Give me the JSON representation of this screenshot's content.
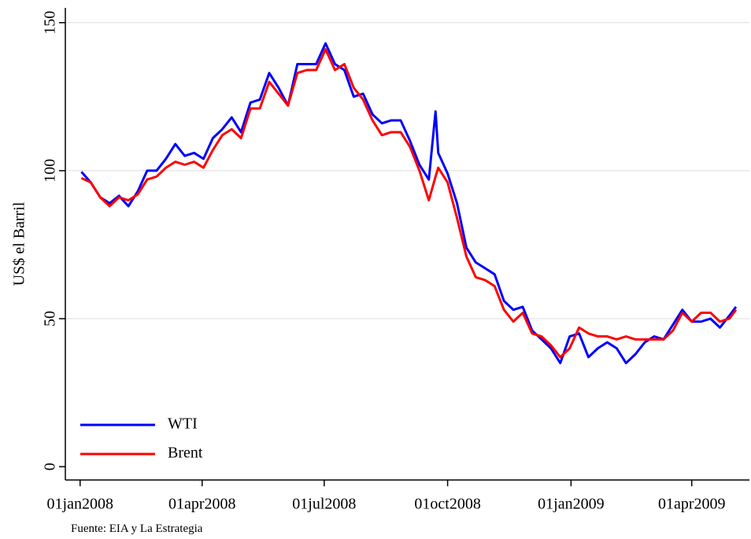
{
  "chart_data": {
    "type": "line",
    "y_label": "US$ el Barril",
    "note": "Fuente: EIA y La Estrategia",
    "x": [
      "2008-01-02",
      "2008-01-09",
      "2008-01-16",
      "2008-01-23",
      "2008-01-30",
      "2008-02-06",
      "2008-02-13",
      "2008-02-20",
      "2008-02-27",
      "2008-03-05",
      "2008-03-12",
      "2008-03-19",
      "2008-03-26",
      "2008-04-02",
      "2008-04-09",
      "2008-04-16",
      "2008-04-23",
      "2008-04-30",
      "2008-05-07",
      "2008-05-14",
      "2008-05-21",
      "2008-05-28",
      "2008-06-04",
      "2008-06-11",
      "2008-06-18",
      "2008-06-25",
      "2008-07-02",
      "2008-07-09",
      "2008-07-16",
      "2008-07-23",
      "2008-07-30",
      "2008-08-06",
      "2008-08-13",
      "2008-08-20",
      "2008-08-27",
      "2008-09-03",
      "2008-09-10",
      "2008-09-17",
      "2008-09-22",
      "2008-09-24",
      "2008-10-01",
      "2008-10-08",
      "2008-10-15",
      "2008-10-22",
      "2008-10-29",
      "2008-11-05",
      "2008-11-12",
      "2008-11-19",
      "2008-11-26",
      "2008-12-03",
      "2008-12-10",
      "2008-12-17",
      "2008-12-24",
      "2008-12-31",
      "2009-01-07",
      "2009-01-14",
      "2009-01-21",
      "2009-01-28",
      "2009-02-04",
      "2009-02-11",
      "2009-02-18",
      "2009-02-25",
      "2009-03-04",
      "2009-03-11",
      "2009-03-18",
      "2009-03-25",
      "2009-04-01",
      "2009-04-08",
      "2009-04-15",
      "2009-04-22",
      "2009-04-29",
      "2009-05-04"
    ],
    "series": [
      {
        "name": "WTI",
        "color": "#0000ff",
        "values": [
          99.6,
          96,
          91,
          89,
          91.5,
          88,
          93,
          100,
          100,
          104,
          109,
          105,
          106,
          104,
          111,
          114,
          118,
          113,
          123,
          124,
          133,
          128,
          122,
          136,
          136,
          136,
          143,
          136,
          134,
          125,
          126,
          119,
          116,
          117,
          117,
          110,
          102,
          97,
          120,
          106,
          99,
          89,
          74,
          69,
          67,
          65,
          56,
          53,
          54,
          46,
          43,
          40,
          35,
          44,
          45,
          37,
          40,
          42,
          40,
          35,
          38,
          42,
          44,
          43,
          48,
          53,
          49,
          49,
          50,
          47,
          51,
          54
        ]
      },
      {
        "name": "Brent",
        "color": "#ff0000",
        "values": [
          97.5,
          96,
          91,
          88,
          91,
          90,
          92,
          97,
          98,
          101,
          103,
          102,
          103,
          101,
          107,
          112,
          114,
          111,
          121,
          121,
          130,
          126,
          122,
          133,
          134,
          134,
          141,
          134,
          136,
          128,
          124,
          117,
          112,
          113,
          113,
          108,
          100,
          90,
          98,
          101,
          96,
          84,
          71,
          64,
          63,
          61,
          53,
          49,
          52,
          45,
          44,
          41,
          37,
          40,
          47,
          45,
          44,
          44,
          43,
          44,
          43,
          43,
          43,
          43,
          46,
          52,
          49,
          52,
          52,
          49,
          50,
          53
        ]
      }
    ],
    "xlim": [
      "2007-12-21",
      "2009-05-14"
    ],
    "xticks": [
      {
        "value": "2008-01-01",
        "label": "01jan2008"
      },
      {
        "value": "2008-04-01",
        "label": "01apr2008"
      },
      {
        "value": "2008-07-01",
        "label": "01jul2008"
      },
      {
        "value": "2008-10-01",
        "label": "01oct2008"
      },
      {
        "value": "2009-01-01",
        "label": "01jan2009"
      },
      {
        "value": "2009-04-01",
        "label": "01apr2009"
      }
    ],
    "ylim": [
      -4.5,
      155
    ],
    "yticks": [
      0,
      50,
      100,
      150
    ],
    "grid": true,
    "legend_position": "lower-left"
  }
}
